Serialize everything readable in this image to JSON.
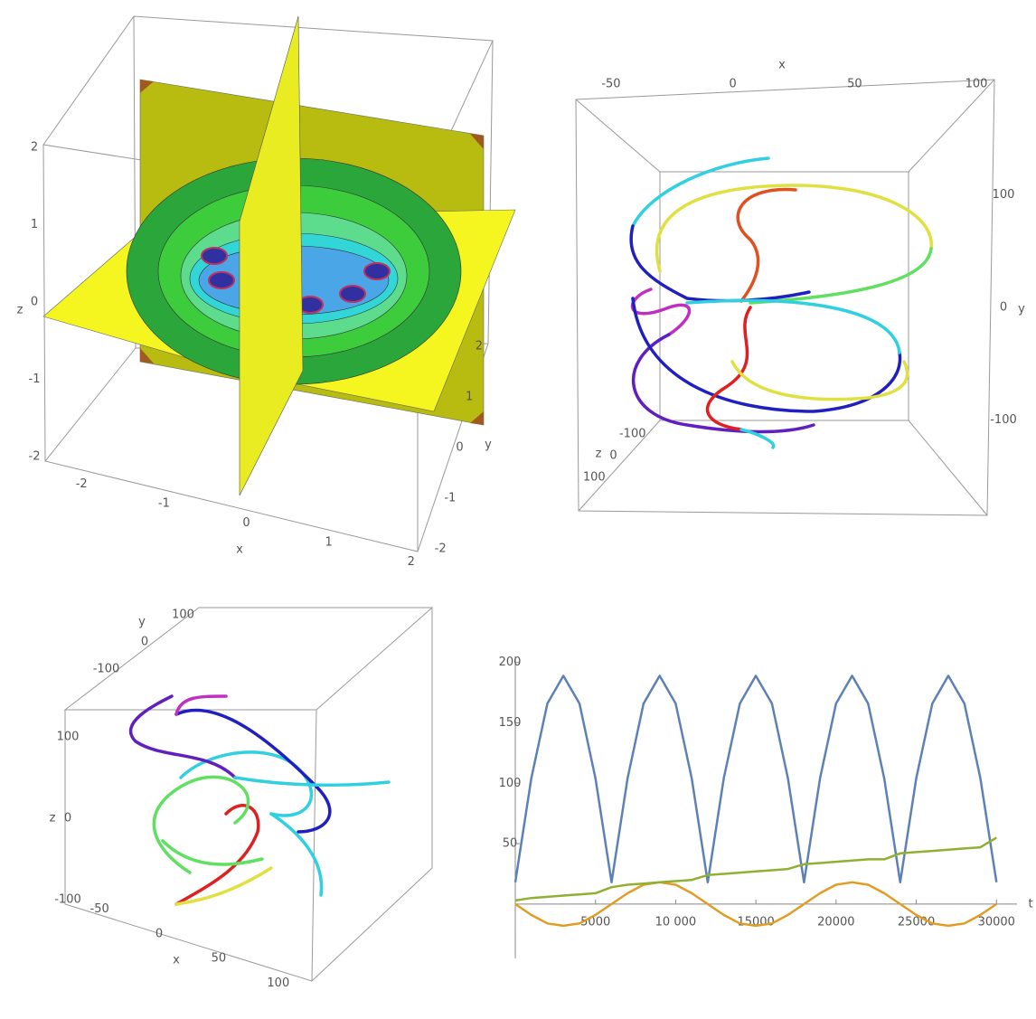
{
  "chart_data": [
    {
      "type": "contour3d",
      "xlabel": "x",
      "ylabel": "y",
      "zlabel": "z",
      "xlim": [
        -2.2,
        2.2
      ],
      "ylim": [
        -2.2,
        2.2
      ],
      "zlim": [
        -2.2,
        2.2
      ],
      "xticks": [
        -2,
        -1,
        0,
        1,
        2
      ],
      "yticks": [
        -2,
        -1,
        0,
        1,
        2
      ],
      "zticks": [
        -2,
        -1,
        0,
        1,
        2
      ]
    },
    {
      "type": "curve3d",
      "xlabel": "x",
      "ylabel": "y",
      "zlabel": "z",
      "xlim": [
        -60,
        110
      ],
      "ylim": [
        -130,
        130
      ],
      "zlim": [
        -120,
        120
      ],
      "xticks": [
        -50,
        0,
        50,
        100
      ],
      "yticks": [
        -100,
        0,
        100
      ],
      "zticks": [
        -100,
        0,
        100
      ]
    },
    {
      "type": "curve3d",
      "xlabel": "x",
      "ylabel": "y",
      "zlabel": "z",
      "xlim": [
        -60,
        110
      ],
      "ylim": [
        -120,
        120
      ],
      "zlim": [
        -120,
        120
      ],
      "xticks": [
        -50,
        0,
        50,
        100
      ],
      "yticks": [
        -100,
        0,
        100
      ],
      "zticks": [
        -100,
        0,
        100
      ]
    },
    {
      "type": "line",
      "xlabel": "t",
      "x": [
        0,
        1000,
        2000,
        3000,
        4000,
        5000,
        6000,
        7000,
        8000,
        9000,
        10000,
        11000,
        12000,
        13000,
        14000,
        15000,
        16000,
        17000,
        18000,
        19000,
        20000,
        21000,
        22000,
        23000,
        24000,
        25000,
        26000,
        27000,
        28000,
        29000,
        30000
      ],
      "series": [
        {
          "color": "#5e81b5",
          "values": [
            18,
            104,
            166,
            189,
            166,
            104,
            18,
            104,
            166,
            189,
            166,
            104,
            18,
            104,
            166,
            189,
            166,
            104,
            18,
            104,
            166,
            189,
            166,
            104,
            18,
            104,
            166,
            189,
            166,
            104,
            18
          ]
        },
        {
          "color": "#e19c24",
          "values": [
            0,
            -9,
            -16,
            -18,
            -16,
            -9,
            0,
            9,
            16,
            18,
            16,
            9,
            0,
            -9,
            -16,
            -18,
            -16,
            -9,
            0,
            9,
            16,
            18,
            16,
            9,
            0,
            -9,
            -16,
            -18,
            -16,
            -9,
            0
          ]
        },
        {
          "color": "#8fb032",
          "values": [
            3,
            5,
            6,
            7,
            8,
            9,
            14,
            16,
            17,
            18,
            19,
            20,
            24,
            25,
            26,
            27,
            28,
            29,
            33,
            34,
            35,
            36,
            37,
            37,
            42,
            43,
            44,
            45,
            46,
            47,
            55
          ]
        }
      ],
      "xlim": [
        0,
        31000
      ],
      "ylim": [
        -45,
        205
      ],
      "xticks": [
        5000,
        {
          "value": 10000,
          "label": "10 000"
        },
        15000,
        20000,
        25000,
        30000
      ],
      "yticks": [
        50,
        100,
        150,
        200
      ]
    }
  ]
}
